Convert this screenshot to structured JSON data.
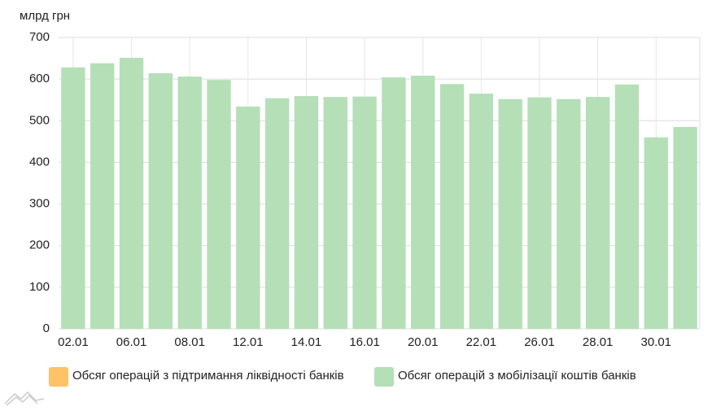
{
  "chart_data": {
    "type": "bar",
    "y_label": "млрд грн",
    "categories": [
      "02.01",
      null,
      "06.01",
      null,
      "08.01",
      null,
      "12.01",
      null,
      "14.01",
      null,
      "16.01",
      null,
      "20.01",
      null,
      "22.01",
      null,
      "26.01",
      null,
      "28.01",
      null,
      "30.01",
      null
    ],
    "series": [
      {
        "name": "Обсяг операцій з підтримання ліквідності банків",
        "color": "#ffc266",
        "values": [
          null,
          null,
          null,
          null,
          null,
          null,
          null,
          null,
          null,
          null,
          null,
          null,
          null,
          null,
          null,
          null,
          null,
          null,
          null,
          null,
          null,
          null
        ]
      },
      {
        "name": "Обсяг операцій з мобілізації коштів банків",
        "color": "#b5dfb7",
        "values": [
          628,
          638,
          651,
          614,
          606,
          598,
          534,
          554,
          559,
          557,
          558,
          604,
          608,
          588,
          565,
          552,
          556,
          552,
          557,
          587,
          460,
          485
        ]
      }
    ],
    "ylim": [
      0,
      700
    ],
    "yticks": [
      0,
      100,
      200,
      300,
      400,
      500,
      600,
      700
    ],
    "grid": true
  }
}
